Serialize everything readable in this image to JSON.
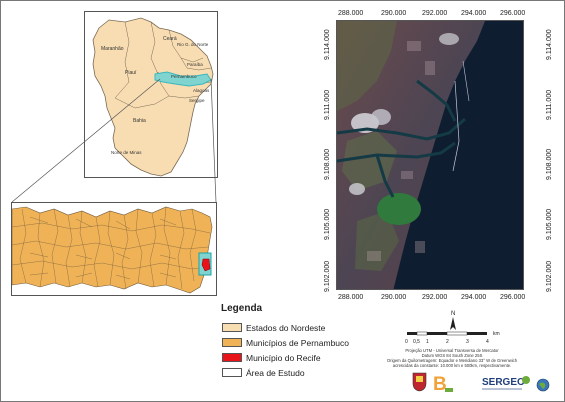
{
  "regional_map": {
    "state_labels": [
      {
        "id": "maranhao",
        "text": "Maranhão"
      },
      {
        "id": "ceara",
        "text": "Ceará"
      },
      {
        "id": "rio_grande_do_norte",
        "text": "Rio G. do Norte"
      },
      {
        "id": "piaui",
        "text": "Piauí"
      },
      {
        "id": "paraiba",
        "text": "Paraíba"
      },
      {
        "id": "pernambuco",
        "text": "Pernambuco"
      },
      {
        "id": "alagoas",
        "text": "Alagoas"
      },
      {
        "id": "sergipe",
        "text": "Sergipe"
      },
      {
        "id": "bahia",
        "text": "Bahia"
      },
      {
        "id": "minas",
        "text": "Norte de Minas"
      }
    ]
  },
  "satellite_map": {
    "x_ticks": [
      "288.000",
      "290.000",
      "292.000",
      "294.000",
      "296.000"
    ],
    "y_ticks_left": [
      "9.114.000",
      "9.111.000",
      "9.108.000",
      "9.105.000",
      "9.102.000"
    ],
    "y_ticks_right": [
      "9.114.000",
      "9.111.000",
      "9.108.000",
      "9.105.000",
      "9.102.000"
    ]
  },
  "legend": {
    "title": "Legenda",
    "items": [
      {
        "label": "Estados do Nordeste",
        "color": "#f8ddb2"
      },
      {
        "label": "Municípios de Pernambuco",
        "color": "#f0b256"
      },
      {
        "label": "Município do Recife",
        "color": "#e8141a"
      },
      {
        "label": "Área de Estudo",
        "color": "#ffffff"
      }
    ]
  },
  "scale_bar": {
    "ticks": [
      "0",
      "0,5",
      "1",
      "2",
      "3",
      "4"
    ],
    "unit": "km",
    "north": "N"
  },
  "projection_note": [
    "Projeção UTM - Universal Transversa de Mercator",
    "Datum WGS 84 South Zone 25S",
    "Origem da Quilometragem: Equador e Meridiano 33° W de Greenwich",
    "acrescidas da constante: 10.000 km e 500km, respectivamente."
  ],
  "logos": {
    "b_logo": "B",
    "sergeo": "SERGEO"
  }
}
